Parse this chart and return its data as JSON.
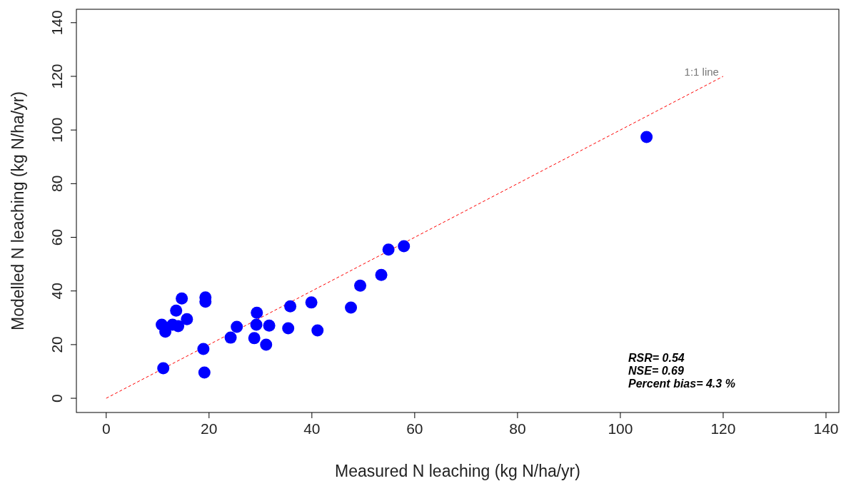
{
  "chart_data": {
    "type": "scatter",
    "xlabel": "Measured N leaching (kg N/ha/yr)",
    "ylabel": "Modelled N leaching (kg N/ha/yr)",
    "xlim": [
      -5.8,
      142.5
    ],
    "ylim": [
      -5.3,
      145
    ],
    "xticks": [
      0,
      20,
      40,
      60,
      80,
      100,
      120,
      140
    ],
    "yticks": [
      0,
      20,
      40,
      60,
      80,
      100,
      120,
      140
    ],
    "series": [
      {
        "type": "line",
        "color": "#ff0000",
        "line_style": "dashed",
        "marker": "none",
        "x": [
          0,
          120
        ],
        "values": [
          0,
          120
        ]
      },
      {
        "color": "#0000ff",
        "marker": "circle",
        "x": [
          54.9,
          57.9,
          53.5,
          49.4,
          47.6,
          39.9,
          35.8,
          35.4,
          41.1,
          29.3,
          29.2,
          31.7,
          28.8,
          31.1,
          25.4,
          24.2,
          18.9,
          19.1,
          11.1,
          19.3,
          19.3,
          14.7,
          13.6,
          15.7,
          10.8,
          11.5,
          12.9,
          14.0,
          105.1
        ],
        "values": [
          55.4,
          56.7,
          46,
          42,
          33.8,
          35.7,
          34.3,
          26.1,
          25.3,
          31.9,
          27.4,
          27.1,
          22.4,
          20,
          26.6,
          22.6,
          18.4,
          9.6,
          11.2,
          37.6,
          36,
          37.2,
          32.7,
          29.5,
          27.4,
          24.8,
          27.4,
          26.9,
          97.4
        ]
      }
    ],
    "annotations": [
      "1:1 line",
      "RSR= 0.54",
      "NSE= 0.69",
      "Percent bias= 4.3 %"
    ]
  }
}
